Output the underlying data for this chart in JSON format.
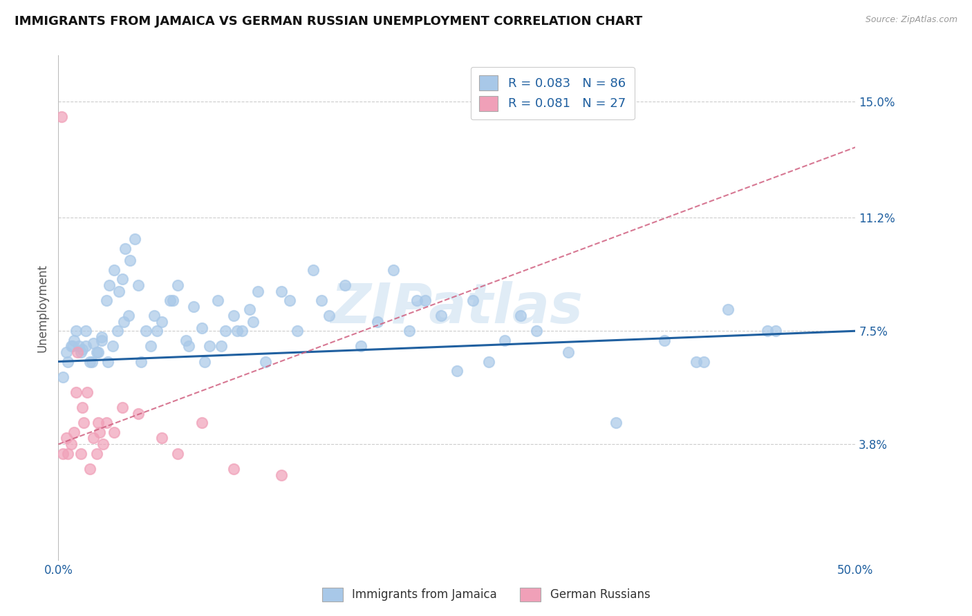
{
  "title": "IMMIGRANTS FROM JAMAICA VS GERMAN RUSSIAN UNEMPLOYMENT CORRELATION CHART",
  "source_text": "Source: ZipAtlas.com",
  "ylabel": "Unemployment",
  "xlim": [
    0.0,
    50.0
  ],
  "ylim": [
    0.0,
    16.5
  ],
  "yticks": [
    3.8,
    7.5,
    11.2,
    15.0
  ],
  "xticklabels": [
    "0.0%",
    "50.0%"
  ],
  "yticklabels": [
    "3.8%",
    "7.5%",
    "11.2%",
    "15.0%"
  ],
  "grid_color": "#cccccc",
  "background_color": "#ffffff",
  "series1_color": "#a8c8e8",
  "series2_color": "#f0a0b8",
  "line1_color": "#2060a0",
  "line2_color": "#d06080",
  "legend_label1": "Immigrants from Jamaica",
  "legend_label2": "German Russians",
  "R1": 0.083,
  "N1": 86,
  "R2": 0.081,
  "N2": 27,
  "title_color": "#111111",
  "label_color": "#2060a0",
  "watermark": "ZIPatlas",
  "line1_x0": 0.0,
  "line1_y0": 6.5,
  "line1_x1": 50.0,
  "line1_y1": 7.5,
  "line2_x0": 0.0,
  "line2_y0": 3.8,
  "line2_x1": 50.0,
  "line2_y1": 13.5,
  "series1_x": [
    0.5,
    0.8,
    1.0,
    1.3,
    1.5,
    1.7,
    2.0,
    2.2,
    2.5,
    2.7,
    3.0,
    3.2,
    3.5,
    3.8,
    4.0,
    4.2,
    4.5,
    4.8,
    5.0,
    5.5,
    6.0,
    6.5,
    7.0,
    7.5,
    8.0,
    8.5,
    9.0,
    9.5,
    10.0,
    10.5,
    11.0,
    11.5,
    12.0,
    12.5,
    13.0,
    14.0,
    15.0,
    16.0,
    17.0,
    18.0,
    19.0,
    20.0,
    21.0,
    22.0,
    23.0,
    24.0,
    25.0,
    26.0,
    27.0,
    28.0,
    29.0,
    30.0,
    32.0,
    35.0,
    38.0,
    40.0,
    42.0,
    45.0,
    0.3,
    0.6,
    0.9,
    1.1,
    1.4,
    1.7,
    2.1,
    2.4,
    2.7,
    3.1,
    3.4,
    3.7,
    4.1,
    4.4,
    5.2,
    5.8,
    6.2,
    7.2,
    8.2,
    9.2,
    10.2,
    11.2,
    12.2,
    14.5,
    16.5,
    22.5,
    40.5,
    44.5
  ],
  "series1_y": [
    6.8,
    7.0,
    7.2,
    7.0,
    6.9,
    7.5,
    6.5,
    7.1,
    6.8,
    7.3,
    8.5,
    9.0,
    9.5,
    8.8,
    9.2,
    10.2,
    9.8,
    10.5,
    9.0,
    7.5,
    8.0,
    7.8,
    8.5,
    9.0,
    7.2,
    8.3,
    7.6,
    7.0,
    8.5,
    7.5,
    8.0,
    7.5,
    8.2,
    8.8,
    6.5,
    8.8,
    7.5,
    9.5,
    8.0,
    9.0,
    7.0,
    7.8,
    9.5,
    7.5,
    8.5,
    8.0,
    6.2,
    8.5,
    6.5,
    7.2,
    8.0,
    7.5,
    6.8,
    4.5,
    7.2,
    6.5,
    8.2,
    7.5,
    6.0,
    6.5,
    7.0,
    7.5,
    6.8,
    7.0,
    6.5,
    6.8,
    7.2,
    6.5,
    7.0,
    7.5,
    7.8,
    8.0,
    6.5,
    7.0,
    7.5,
    8.5,
    7.0,
    6.5,
    7.0,
    7.5,
    7.8,
    8.5,
    8.5,
    8.5,
    6.5,
    7.5
  ],
  "series2_x": [
    0.2,
    0.3,
    0.5,
    0.6,
    0.8,
    1.0,
    1.2,
    1.4,
    1.6,
    1.8,
    2.0,
    2.2,
    2.4,
    2.6,
    2.8,
    3.0,
    3.5,
    4.0,
    5.0,
    6.5,
    7.5,
    9.0,
    11.0,
    14.0,
    1.1,
    1.5,
    2.5
  ],
  "series2_y": [
    14.5,
    3.5,
    4.0,
    3.5,
    3.8,
    4.2,
    6.8,
    3.5,
    4.5,
    5.5,
    3.0,
    4.0,
    3.5,
    4.2,
    3.8,
    4.5,
    4.2,
    5.0,
    4.8,
    4.0,
    3.5,
    4.5,
    3.0,
    2.8,
    5.5,
    5.0,
    4.5
  ]
}
